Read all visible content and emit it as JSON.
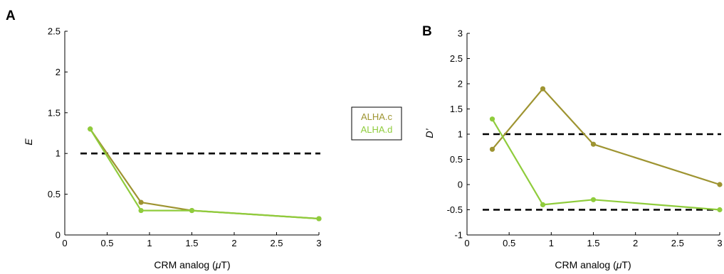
{
  "figure": {
    "legend_placement": "between-panels",
    "reference_line_style": "black dashed",
    "colors": {
      "ALHA.c": "#9e9431",
      "ALHA.d": "#8fcc3c",
      "reference": "#000000"
    }
  },
  "panels": [
    {
      "letter": "A",
      "xlabel_prefix": "CRM analog (",
      "xlabel_mu": "μ",
      "xlabel_suffix": "T)",
      "ylabel": "E"
    },
    {
      "letter": "B",
      "xlabel_prefix": "CRM analog (",
      "xlabel_mu": "μ",
      "xlabel_suffix": "T)",
      "ylabel": "D’"
    }
  ],
  "legend": {
    "items": [
      "ALHA.c",
      "ALHA.d"
    ]
  },
  "chart_data": [
    {
      "type": "line",
      "title": "",
      "xlabel": "CRM analog (μT)",
      "ylabel": "E",
      "xlim": [
        0,
        3
      ],
      "ylim": [
        0,
        2.5
      ],
      "xticks": [
        "0",
        "0.5",
        "1",
        "1.5",
        "2",
        "2.5",
        "3"
      ],
      "yticks": [
        "0",
        "0.5",
        "1",
        "1.5",
        "2",
        "2.5"
      ],
      "grid": false,
      "reference_lines": [
        1
      ],
      "series": [
        {
          "name": "ALHA.c",
          "color": "#9e9431",
          "x": [
            0.3,
            0.9,
            1.5,
            3
          ],
          "y": [
            1.3,
            0.4,
            0.3,
            0.2
          ]
        },
        {
          "name": "ALHA.d",
          "color": "#8fcc3c",
          "x": [
            0.3,
            0.9,
            1.5,
            3
          ],
          "y": [
            1.3,
            0.3,
            0.3,
            0.2
          ]
        }
      ]
    },
    {
      "type": "line",
      "title": "",
      "xlabel": "CRM analog (μT)",
      "ylabel": "D’",
      "xlim": [
        0,
        3
      ],
      "ylim": [
        -1,
        3
      ],
      "xticks": [
        "0",
        "0.5",
        "1",
        "1.5",
        "2",
        "2.5",
        "3"
      ],
      "yticks": [
        "-1",
        "-0.5",
        "0",
        "0.5",
        "1",
        "1.5",
        "2",
        "2.5",
        "3"
      ],
      "grid": false,
      "reference_lines": [
        1,
        -0.5
      ],
      "series": [
        {
          "name": "ALHA.c",
          "color": "#9e9431",
          "x": [
            0.3,
            0.9,
            1.5,
            3
          ],
          "y": [
            0.7,
            1.9,
            0.8,
            0
          ]
        },
        {
          "name": "ALHA.d",
          "color": "#8fcc3c",
          "x": [
            0.3,
            0.9,
            1.5,
            3
          ],
          "y": [
            1.3,
            -0.4,
            -0.3,
            -0.5
          ]
        }
      ]
    }
  ]
}
